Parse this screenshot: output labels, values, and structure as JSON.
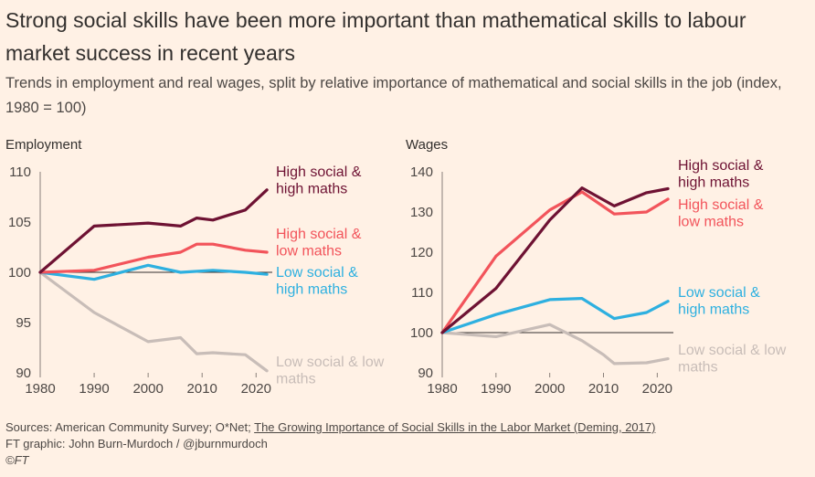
{
  "title": "Strong social skills have been more important than mathematical skills to labour market success in recent years",
  "subtitle": "Trends in employment and real wages, split by relative importance of mathematical and social skills in the job (index, 1980 = 100)",
  "colors": {
    "background": "#fff1e5",
    "high_social_high_maths": "#6e1233",
    "high_social_low_maths": "#f2545b",
    "low_social_high_maths": "#2eb0e0",
    "low_social_low_maths": "#c8bdb8",
    "baseline": "#33302e"
  },
  "chart_data": [
    {
      "type": "line",
      "title": "Employment",
      "xlabel": "",
      "ylabel": "",
      "xlim": [
        1980,
        2023
      ],
      "ylim": [
        90,
        110
      ],
      "xticks": [
        1980,
        1990,
        2000,
        2010,
        2020
      ],
      "yticks": [
        90,
        95,
        100,
        105,
        110
      ],
      "baseline": 100,
      "series": [
        {
          "name": "High social & high maths",
          "label_lines": [
            "High social &",
            "high maths"
          ],
          "color_key": "high_social_high_maths",
          "x": [
            1980,
            1990,
            2000,
            2006,
            2009,
            2012,
            2018,
            2022
          ],
          "values": [
            100,
            104.6,
            104.9,
            104.6,
            105.4,
            105.2,
            106.2,
            108.2
          ]
        },
        {
          "name": "High social & low maths",
          "label_lines": [
            "High social &",
            "low maths"
          ],
          "color_key": "high_social_low_maths",
          "x": [
            1980,
            1990,
            2000,
            2006,
            2009,
            2012,
            2018,
            2022
          ],
          "values": [
            100,
            100.2,
            101.5,
            102.0,
            102.8,
            102.8,
            102.2,
            102.0
          ]
        },
        {
          "name": "Low social & high maths",
          "label_lines": [
            "Low social &",
            "high maths"
          ],
          "color_key": "low_social_high_maths",
          "x": [
            1980,
            1990,
            2000,
            2006,
            2012,
            2018,
            2022
          ],
          "values": [
            100,
            99.3,
            100.7,
            100.0,
            100.2,
            100.0,
            99.8
          ]
        },
        {
          "name": "Low social & low maths",
          "label_lines": [
            "Low social & low",
            "maths"
          ],
          "color_key": "low_social_low_maths",
          "x": [
            1980,
            1990,
            2000,
            2006,
            2009,
            2012,
            2018,
            2022
          ],
          "values": [
            100,
            96.0,
            93.1,
            93.5,
            91.9,
            92.0,
            91.8,
            90.2
          ]
        }
      ]
    },
    {
      "type": "line",
      "title": "Wages",
      "xlabel": "",
      "ylabel": "",
      "xlim": [
        1980,
        2023
      ],
      "ylim": [
        90,
        140
      ],
      "xticks": [
        1980,
        1990,
        2000,
        2010,
        2020
      ],
      "yticks": [
        90,
        100,
        110,
        120,
        130,
        140
      ],
      "baseline": 100,
      "series": [
        {
          "name": "High social & high maths",
          "label_lines": [
            "High social &",
            "high maths"
          ],
          "color_key": "high_social_high_maths",
          "x": [
            1980,
            1990,
            2000,
            2006,
            2012,
            2018,
            2022
          ],
          "values": [
            100,
            111,
            128,
            136,
            131.5,
            134.8,
            135.8
          ]
        },
        {
          "name": "High social & low maths",
          "label_lines": [
            "High social &",
            "low maths"
          ],
          "color_key": "high_social_low_maths",
          "x": [
            1980,
            1990,
            2000,
            2006,
            2012,
            2018,
            2022
          ],
          "values": [
            100,
            119,
            130.5,
            135,
            129.5,
            130,
            133.2
          ]
        },
        {
          "name": "Low social & high maths",
          "label_lines": [
            "Low social &",
            "high maths"
          ],
          "color_key": "low_social_high_maths",
          "x": [
            1980,
            1990,
            2000,
            2006,
            2012,
            2018,
            2022
          ],
          "values": [
            100,
            104.5,
            108.2,
            108.5,
            103.5,
            105,
            107.8
          ]
        },
        {
          "name": "Low social & low maths",
          "label_lines": [
            "Low social & low",
            "maths"
          ],
          "color_key": "low_social_low_maths",
          "x": [
            1980,
            1990,
            2000,
            2006,
            2010,
            2012,
            2018,
            2022
          ],
          "values": [
            100,
            99,
            102,
            98,
            94.5,
            92.3,
            92.5,
            93.5
          ]
        }
      ]
    }
  ],
  "footer": {
    "sources_prefix": "Sources: American Community Survey; O*Net; ",
    "sources_link": "The Growing Importance of Social Skills in the Labor Market (Deming, 2017)",
    "graphic_credit": "FT graphic: John Burn-Murdoch / @jburnmurdoch",
    "copyright": "©FT"
  }
}
